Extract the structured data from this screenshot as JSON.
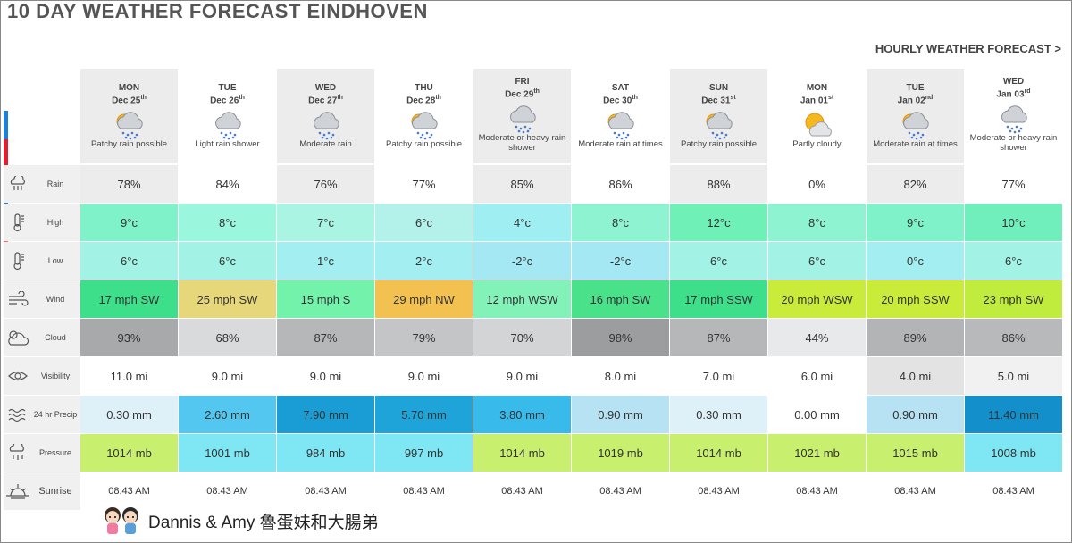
{
  "title": "10 DAY WEATHER FORECAST EINDHOVEN",
  "hourly_link": "HOURLY WEATHER FORECAST >",
  "footer": "Dannis & Amy 魯蛋妹和大腸弟",
  "days": [
    {
      "day": "MON",
      "date": "Dec 25",
      "sup": "th",
      "cond": "Patchy rain possible",
      "icon": "sun-cloud-rain-icon",
      "shade": "#ececec"
    },
    {
      "day": "TUE",
      "date": "Dec 26",
      "sup": "th",
      "cond": "Light rain shower",
      "icon": "cloud-rain-icon",
      "shade": "#ffffff"
    },
    {
      "day": "WED",
      "date": "Dec 27",
      "sup": "th",
      "cond": "Moderate rain",
      "icon": "cloud-rain-icon",
      "shade": "#ececec"
    },
    {
      "day": "THU",
      "date": "Dec 28",
      "sup": "th",
      "cond": "Patchy rain possible",
      "icon": "sun-cloud-rain-icon",
      "shade": "#ffffff"
    },
    {
      "day": "FRI",
      "date": "Dec 29",
      "sup": "th",
      "cond": "Moderate or heavy rain shower",
      "icon": "cloud-rain-icon",
      "shade": "#ececec"
    },
    {
      "day": "SAT",
      "date": "Dec 30",
      "sup": "th",
      "cond": "Moderate rain at times",
      "icon": "sun-cloud-rain-icon",
      "shade": "#ffffff"
    },
    {
      "day": "SUN",
      "date": "Dec 31",
      "sup": "st",
      "cond": "Patchy rain possible",
      "icon": "sun-cloud-rain-icon",
      "shade": "#ececec"
    },
    {
      "day": "MON",
      "date": "Jan 01",
      "sup": "st",
      "cond": "Partly cloudy",
      "icon": "partly-cloudy-icon",
      "shade": "#ffffff"
    },
    {
      "day": "TUE",
      "date": "Jan 02",
      "sup": "nd",
      "cond": "Moderate rain at times",
      "icon": "sun-cloud-rain-icon",
      "shade": "#ececec"
    },
    {
      "day": "WED",
      "date": "Jan 03",
      "sup": "rd",
      "cond": "Moderate or heavy rain shower",
      "icon": "cloud-rain-icon",
      "shade": "#ffffff"
    }
  ],
  "rows": [
    {
      "key": "rain",
      "label": "Rain",
      "icon": "rain-gauge-icon",
      "values": [
        "78%",
        "84%",
        "76%",
        "77%",
        "85%",
        "86%",
        "88%",
        "0%",
        "82%",
        "77%"
      ],
      "colors": [
        "#ececec",
        "#ffffff",
        "#ececec",
        "#ffffff",
        "#ececec",
        "#ffffff",
        "#ececec",
        "#ffffff",
        "#ececec",
        "#ffffff"
      ]
    },
    {
      "key": "high",
      "label": "High",
      "icon": "thermometer-high-icon",
      "values": [
        "9°c",
        "8°c",
        "7°c",
        "6°c",
        "4°c",
        "8°c",
        "12°c",
        "8°c",
        "9°c",
        "10°c"
      ],
      "colors": [
        "#7ff2c9",
        "#9af6dd",
        "#a9f4e2",
        "#b3f2ea",
        "#9eeef2",
        "#8ef3d1",
        "#6ef0b6",
        "#8ef3d1",
        "#7ff2c9",
        "#70efbd"
      ]
    },
    {
      "key": "low",
      "label": "Low",
      "icon": "thermometer-low-icon",
      "values": [
        "6°c",
        "6°c",
        "1°c",
        "2°c",
        "-2°c",
        "-2°c",
        "6°c",
        "6°c",
        "0°c",
        "6°c"
      ],
      "colors": [
        "#a2f3e6",
        "#a2f3e6",
        "#a3eef1",
        "#a3eef1",
        "#a4e8f3",
        "#a4e8f3",
        "#a2f3e6",
        "#a2f3e6",
        "#a3eef1",
        "#a2f3e6"
      ]
    },
    {
      "key": "wind",
      "label": "Wind",
      "icon": "wind-icon",
      "values": [
        "17 mph SW",
        "25 mph SW",
        "15 mph S",
        "29 mph NW",
        "12 mph WSW",
        "16 mph SW",
        "17 mph SSW",
        "20 mph WSW",
        "20 mph SSW",
        "23 mph SW"
      ],
      "colors": [
        "#3ddf8a",
        "#e6d77a",
        "#73f2ab",
        "#f2c14f",
        "#82f2b8",
        "#49e28b",
        "#3ddf8a",
        "#c9ec3b",
        "#c9ec3b",
        "#c0ec3e"
      ]
    },
    {
      "key": "cloud",
      "label": "Cloud",
      "icon": "cloud-icon",
      "values": [
        "93%",
        "68%",
        "87%",
        "79%",
        "70%",
        "98%",
        "87%",
        "44%",
        "89%",
        "86%"
      ],
      "colors": [
        "#a8a9aa",
        "#d9dadb",
        "#b6b7b8",
        "#c4c5c6",
        "#d3d4d5",
        "#9c9d9e",
        "#b6b7b8",
        "#e8e9ea",
        "#b3b4b5",
        "#b8b9ba"
      ]
    },
    {
      "key": "visibility",
      "label": "Visibility",
      "icon": "eye-icon",
      "values": [
        "11.0 mi",
        "9.0 mi",
        "9.0 mi",
        "9.0 mi",
        "9.0 mi",
        "8.0 mi",
        "7.0 mi",
        "6.0 mi",
        "4.0 mi",
        "5.0 mi"
      ],
      "colors": [
        "#ffffff",
        "#ffffff",
        "#ffffff",
        "#ffffff",
        "#ffffff",
        "#ffffff",
        "#ffffff",
        "#ffffff",
        "#e3e3e3",
        "#f1f1f1"
      ]
    },
    {
      "key": "precip",
      "label": "24 hr Precip",
      "icon": "water-waves-icon",
      "values": [
        "0.30 mm",
        "2.60 mm",
        "7.90 mm",
        "5.70 mm",
        "3.80 mm",
        "0.90 mm",
        "0.30 mm",
        "0.00 mm",
        "0.90 mm",
        "11.40 mm"
      ],
      "colors": [
        "#dff1f8",
        "#53c7ef",
        "#1a9dd4",
        "#1ea4d8",
        "#38baea",
        "#b6e2f3",
        "#dff1f8",
        "#ffffff",
        "#b6e2f3",
        "#1390cc"
      ]
    },
    {
      "key": "pressure",
      "label": "Pressure",
      "icon": "pressure-icon",
      "values": [
        "1014 mb",
        "1001 mb",
        "984 mb",
        "997 mb",
        "1014 mb",
        "1019 mb",
        "1014 mb",
        "1021 mb",
        "1015 mb",
        "1008 mb"
      ],
      "colors": [
        "#c9ef6e",
        "#7fe7f4",
        "#7fe7f4",
        "#7fe7f4",
        "#c9ef6e",
        "#c9ef6e",
        "#c9ef6e",
        "#c9ef6e",
        "#c9ef6e",
        "#7fe7f4"
      ]
    },
    {
      "key": "sunrise",
      "label": "Sunrise",
      "icon": "sunrise-icon",
      "values": [
        "08:43 AM",
        "08:43 AM",
        "08:43 AM",
        "08:43 AM",
        "08:43 AM",
        "08:43 AM",
        "08:43 AM",
        "08:43 AM",
        "08:43 AM",
        "08:43 AM"
      ],
      "colors": [
        "#ffffff",
        "#ffffff",
        "#ffffff",
        "#ffffff",
        "#ffffff",
        "#ffffff",
        "#ffffff",
        "#ffffff",
        "#ffffff",
        "#ffffff"
      ]
    }
  ]
}
